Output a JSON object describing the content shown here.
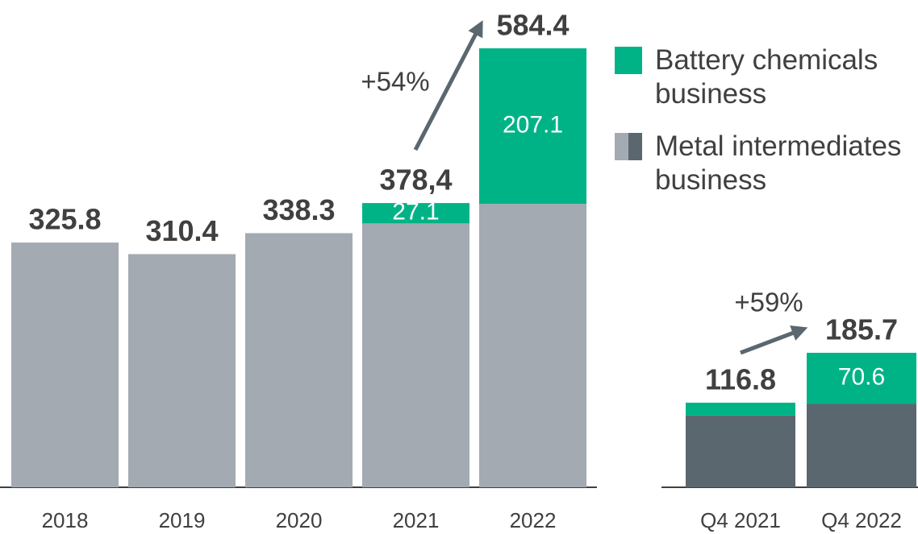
{
  "chart_data": [
    {
      "type": "bar",
      "stacked": true,
      "categories": [
        "2018",
        "2019",
        "2020",
        "2021",
        "2022"
      ],
      "series": [
        {
          "name": "Metal intermediates business",
          "color": "#a3aab1",
          "values": [
            325.8,
            310.4,
            338.3,
            351.3,
            377.3
          ]
        },
        {
          "name": "Battery chemicals business",
          "color": "#00b386",
          "values": [
            null,
            null,
            null,
            27.1,
            207.1
          ],
          "data_labels": true
        }
      ],
      "totals": [
        325.8,
        310.4,
        338.3,
        378.4,
        584.4
      ],
      "total_labels": [
        "325.8",
        "310.4",
        "338.3",
        "378,4",
        "584.4"
      ],
      "annotation": "+54%"
    },
    {
      "type": "bar",
      "stacked": true,
      "categories": [
        "Q4 2021",
        "Q4 2022"
      ],
      "series": [
        {
          "color": "#5b676f",
          "values": [
            99.2,
            115.1
          ]
        },
        {
          "color": "#00b386",
          "values": [
            17.6,
            70.6
          ],
          "data_labels": [
            false,
            true
          ]
        }
      ],
      "totals": [
        116.8,
        185.7
      ],
      "total_labels": [
        "116.8",
        "185.7"
      ],
      "annotation": "+59%"
    }
  ]
}
